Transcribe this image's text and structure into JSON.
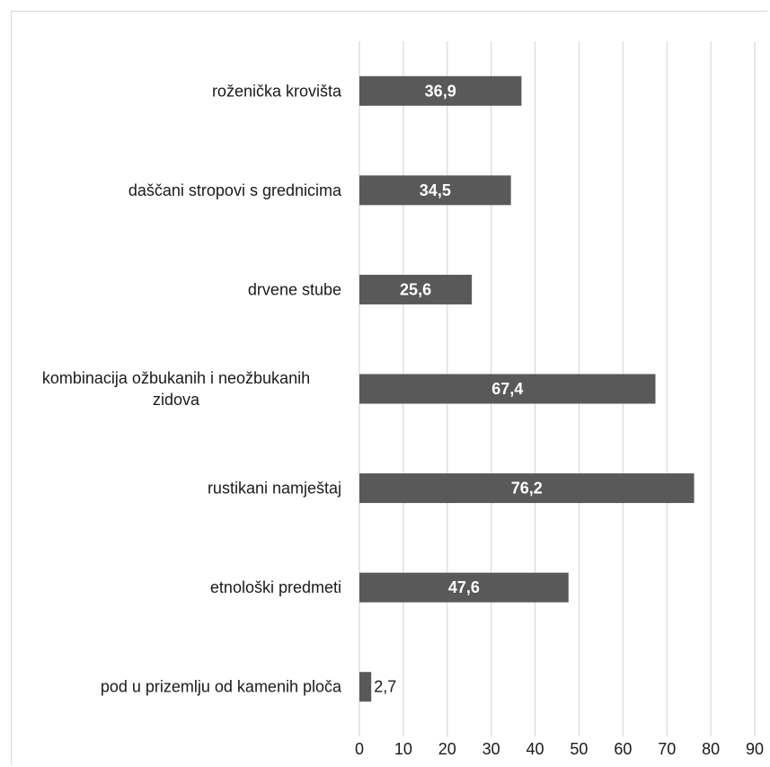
{
  "chart_data": {
    "type": "bar",
    "orientation": "horizontal",
    "categories": [
      "roženička krovišta",
      "daščani stropovi s grednicima",
      "drvene stube",
      "kombinacija ožbukanih i neožbukanih zidova",
      "rustikani namještaj",
      "etnološki predmeti",
      "pod u prizemlju od kamenih ploča"
    ],
    "category_lines": [
      [
        "roženička krovišta"
      ],
      [
        "daščani stropovi s grednicima"
      ],
      [
        "drvene stube"
      ],
      [
        "kombinacija ožbukanih i neožbukanih",
        "zidova"
      ],
      [
        "rustikani namještaj"
      ],
      [
        "etnološki predmeti"
      ],
      [
        "pod u prizemlju od kamenih ploča"
      ]
    ],
    "values": [
      36.9,
      34.5,
      25.6,
      67.4,
      76.2,
      47.6,
      2.7
    ],
    "value_labels": [
      "36,9",
      "34,5",
      "25,6",
      "67,4",
      "76,2",
      "47,6",
      "2,7"
    ],
    "xlim": [
      0,
      90
    ],
    "xticks": [
      0,
      10,
      20,
      30,
      40,
      50,
      60,
      70,
      80,
      90
    ],
    "grid": "vertical",
    "bar_color": "#595959",
    "grid_color": "#d9d9d9",
    "title": "",
    "xlabel": "",
    "ylabel": ""
  }
}
